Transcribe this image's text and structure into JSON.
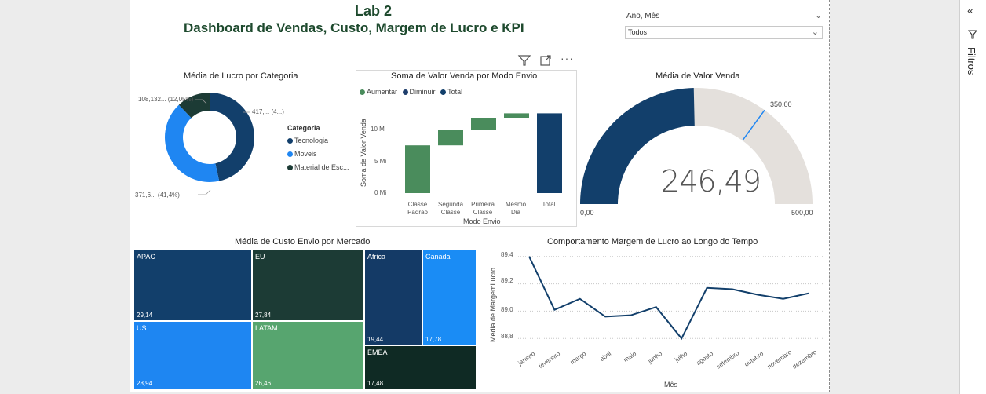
{
  "header": {
    "title": "Lab 2",
    "subtitle": "Dashboard de Vendas, Custo, Margem de Lucro e KPI"
  },
  "slicer": {
    "label": "Ano, Mês",
    "value": "Todos"
  },
  "visual_toolbar": {
    "filter_icon": "filter-icon",
    "focus_icon": "focus-mode-icon",
    "more_icon": "more-options-icon"
  },
  "filters_pane": {
    "label": "Filtros"
  },
  "donut": {
    "title": "Média de Lucro por Categoria",
    "legend_title": "Categoria",
    "labels": [
      "108,132... (12,05%)",
      "417,... (4...)",
      "371,6... (41,4%)"
    ],
    "legend": [
      {
        "name": "Tecnologia",
        "color": "#123f6b"
      },
      {
        "name": "Moveis",
        "color": "#1f86f2"
      },
      {
        "name": "Material de Esc...",
        "color": "#1c3b35"
      }
    ]
  },
  "waterfall": {
    "title": "Soma de Valor Venda por Modo Envio",
    "legend": [
      {
        "name": "Aumentar",
        "color": "#4a8c5c"
      },
      {
        "name": "Diminuir",
        "color": "#1e3e6c"
      },
      {
        "name": "Total",
        "color": "#123f6b"
      }
    ],
    "ylabel": "Soma de Valor Venda",
    "xlabel": "Modo Envio",
    "yticks": [
      "0 Mi",
      "5 Mi",
      "10 Mi"
    ],
    "categories": [
      "Classe Padrao",
      "Segunda Classe",
      "Primeira Classe",
      "Mesmo Dia",
      "Total"
    ]
  },
  "gauge": {
    "title": "Média de Valor Venda",
    "value": "246,49",
    "min": "0,00",
    "max": "500,00",
    "target": "350,00"
  },
  "treemap": {
    "title": "Média de Custo Envio por Mercado",
    "cells": [
      {
        "name": "APAC",
        "value": "29,14",
        "color": "#123f6b"
      },
      {
        "name": "EU",
        "value": "27,84",
        "color": "#1c3b35"
      },
      {
        "name": "Africa",
        "value": "19,44",
        "color": "#143a66"
      },
      {
        "name": "Canada",
        "value": "17,78",
        "color": "#1a8cf5"
      },
      {
        "name": "US",
        "value": "28,94",
        "color": "#1e86f2"
      },
      {
        "name": "LATAM",
        "value": "26,46",
        "color": "#57a56f"
      },
      {
        "name": "EMEA",
        "value": "17,48",
        "color": "#0f2a24"
      }
    ]
  },
  "line": {
    "title": "Comportamento Margem de Lucro ao Longo do Tempo",
    "ylabel": "Média de MargemLucro",
    "xlabel": "Mês",
    "yticks": [
      "88,8",
      "89,0",
      "89,2",
      "89,4"
    ],
    "months": [
      "janeiro",
      "fevereiro",
      "março",
      "abril",
      "maio",
      "junho",
      "julho",
      "agosto",
      "setembro",
      "outubro",
      "novembro",
      "dezembro"
    ]
  },
  "chart_data": [
    {
      "type": "pie",
      "title": "Média de Lucro por Categoria",
      "categories": [
        "Tecnologia",
        "Moveis",
        "Material de Esc..."
      ],
      "values": [
        46.55,
        41.4,
        12.05
      ]
    },
    {
      "type": "bar",
      "title": "Soma de Valor Venda por Modo Envio",
      "categories": [
        "Classe Padrao",
        "Segunda Classe",
        "Primeira Classe",
        "Mesmo Dia",
        "Total"
      ],
      "values": [
        7.6,
        2.5,
        1.9,
        0.7,
        12.7
      ],
      "ylim": [
        0,
        14
      ]
    },
    {
      "type": "line",
      "title": "Comportamento Margem de Lucro ao Longo do Tempo",
      "x": [
        "janeiro",
        "fevereiro",
        "março",
        "abril",
        "maio",
        "junho",
        "julho",
        "agosto",
        "setembro",
        "outubro",
        "novembro",
        "dezembro"
      ],
      "values": [
        89.4,
        89.01,
        89.09,
        88.96,
        88.97,
        89.03,
        88.8,
        89.17,
        89.16,
        89.12,
        89.09,
        89.13
      ],
      "ylim": [
        88.75,
        89.45
      ]
    }
  ]
}
